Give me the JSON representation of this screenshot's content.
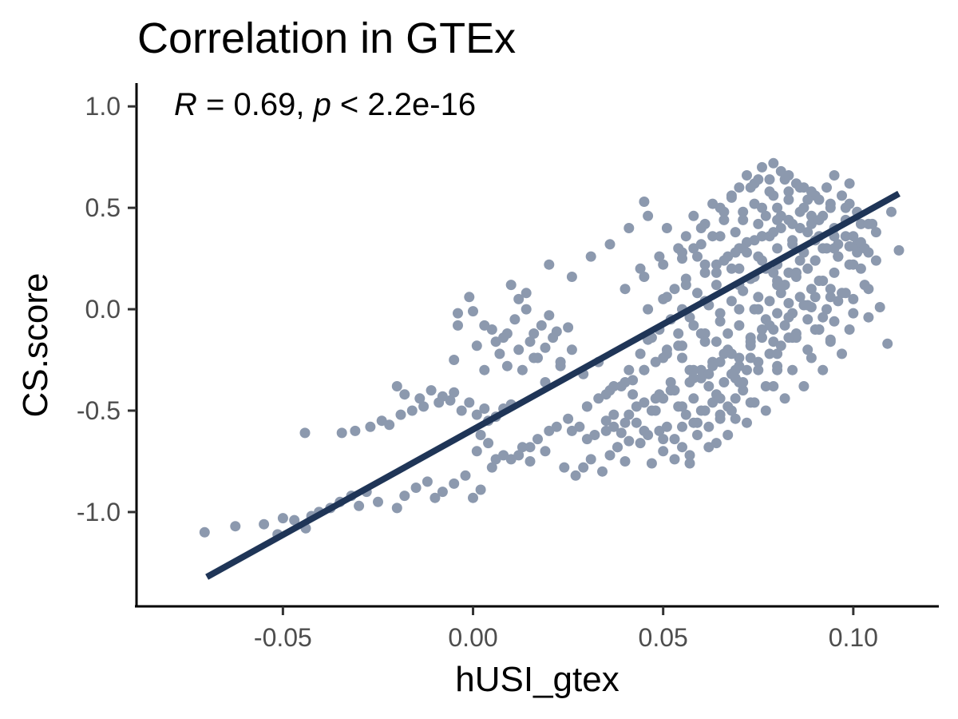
{
  "chart_data": {
    "type": "scatter",
    "title": "Correlation in GTEx",
    "xlabel": "hUSI_gtex",
    "ylabel": "CS.score",
    "xlim": [
      -0.0885,
      0.1225
    ],
    "ylim": [
      -1.465,
      1.115
    ],
    "x_ticks": [
      -0.05,
      0.0,
      0.05,
      0.1
    ],
    "x_tick_labels": [
      "-0.05",
      "0.00",
      "0.05",
      "0.10"
    ],
    "y_ticks": [
      -1.0,
      -0.5,
      0.0,
      0.5,
      1.0
    ],
    "y_tick_labels": [
      "-1.0",
      "-0.5",
      "0.0",
      "0.5",
      "1.0"
    ],
    "grid": false,
    "annotation": {
      "r_symbol": "R",
      "r_text": " = 0.69, ",
      "p_symbol": "p",
      "p_text": " < 2.2e-16"
    },
    "point_color": "#8c99ae",
    "line_color": "#1f3557",
    "regression_line": {
      "x_start": -0.07,
      "y_start": -1.32,
      "x_end": 0.112,
      "y_end": 0.57
    },
    "points": {
      "x": [
        -0.0706,
        -0.0625,
        -0.055,
        -0.0514,
        -0.0425,
        -0.044,
        -0.0405,
        -0.047,
        -0.05,
        -0.0375,
        -0.035,
        -0.03,
        -0.032,
        -0.028,
        -0.025,
        -0.02,
        -0.018,
        -0.015,
        -0.012,
        -0.01,
        -0.008,
        -0.005,
        -0.002,
        0.0,
        0.002,
        -0.0442,
        -0.0345,
        -0.031,
        -0.027,
        -0.024,
        -0.022,
        -0.019,
        -0.016,
        -0.013,
        -0.009,
        -0.006,
        -0.003,
        0.001,
        0.004,
        0.006,
        0.008,
        0.01,
        -0.02,
        -0.018,
        -0.014,
        -0.011,
        -0.008,
        -0.005,
        -0.001,
        0.003,
        -0.005,
        -0.004,
        0.0,
        0.001,
        0.005,
        0.008,
        0.011,
        0.014,
        0.016,
        0.018,
        0.02,
        0.022,
        0.003,
        0.007,
        0.009,
        0.012,
        0.015,
        0.017,
        0.019,
        0.021,
        0.023,
        0.025,
        0.012,
        0.014,
        0.01,
        0.006,
        0.002,
        0.001,
        0.004,
        0.008,
        0.013,
        0.015,
        0.019,
        0.024,
        0.027,
        0.029,
        0.031,
        0.034,
        0.036,
        0.038,
        0.04,
        0.026,
        0.028,
        0.03,
        0.032,
        0.035,
        0.037,
        0.039,
        0.041,
        0.043,
        0.03,
        0.033,
        0.036,
        0.039,
        0.042,
        0.045,
        0.048,
        0.05,
        0.052,
        0.054,
        0.056,
        0.058,
        0.044,
        0.046,
        0.049,
        0.051,
        0.053,
        0.055,
        0.057,
        0.059,
        0.047,
        0.05,
        0.053,
        0.041,
        0.038,
        0.042,
        0.045,
        0.048,
        0.051,
        0.054,
        0.057,
        0.06,
        0.062,
        0.064,
        0.066,
        0.068,
        0.07,
        0.055,
        0.058,
        0.061,
        0.063,
        0.065,
        0.067,
        0.069,
        0.071,
        0.073,
        0.059,
        0.062,
        0.065,
        0.068,
        0.046,
        0.049,
        0.052,
        0.055,
        0.058,
        0.061,
        0.064,
        0.067,
        0.07,
        0.073,
        0.076,
        0.079,
        0.06,
        0.063,
        0.066,
        0.069,
        0.072,
        0.075,
        0.078,
        0.081,
        0.084,
        0.057,
        0.062,
        0.071,
        0.08,
        0.05,
        0.053,
        0.056,
        0.059,
        0.062,
        0.065,
        0.068,
        0.071,
        0.074,
        0.077,
        0.08,
        0.083,
        0.086,
        0.089,
        0.092,
        0.067,
        0.07,
        0.073,
        0.076,
        0.079,
        0.082,
        0.085,
        0.088,
        0.091,
        0.094,
        0.055,
        0.058,
        0.061,
        0.064,
        0.067,
        0.07,
        0.073,
        0.076,
        0.079,
        0.082,
        0.085,
        0.088,
        0.091,
        0.094,
        0.097,
        0.1,
        0.103,
        0.075,
        0.078,
        0.081,
        0.084,
        0.087,
        0.09,
        0.093,
        0.096,
        0.06,
        0.063,
        0.066,
        0.069,
        0.072,
        0.075,
        0.078,
        0.081,
        0.084,
        0.087,
        0.09,
        0.093,
        0.096,
        0.099,
        0.102,
        0.07,
        0.074,
        0.077,
        0.08,
        0.083,
        0.086,
        0.089,
        0.092,
        0.095,
        0.098,
        0.065,
        0.068,
        0.071,
        0.074,
        0.077,
        0.08,
        0.083,
        0.086,
        0.089,
        0.092,
        0.095,
        0.098,
        0.101,
        0.104,
        0.08,
        0.084,
        0.088,
        0.092,
        0.096,
        0.1,
        0.079,
        0.083,
        0.087,
        0.091,
        0.095,
        0.07,
        0.074,
        0.078,
        0.082,
        0.086,
        0.09,
        0.094,
        0.098,
        0.102,
        0.106,
        0.072,
        0.076,
        0.081,
        0.085,
        0.089,
        0.093,
        0.097,
        0.101,
        0.075,
        0.079,
        0.083,
        0.087,
        0.091,
        0.095,
        0.099,
        0.035,
        0.04,
        0.045,
        0.05,
        0.055,
        0.06,
        0.065,
        0.07,
        0.075,
        0.08,
        0.085,
        0.09,
        0.095,
        0.1,
        0.037,
        0.043,
        0.048,
        0.053,
        0.058,
        0.063,
        0.068,
        0.073,
        0.078,
        0.083,
        0.088,
        0.062,
        0.067,
        0.072,
        0.077,
        0.082,
        0.087,
        0.092,
        0.097,
        0.057,
        0.064,
        0.069,
        0.074,
        0.079,
        0.084,
        0.089,
        0.094,
        0.099,
        0.104,
        0.058,
        0.063,
        0.068,
        0.073,
        0.078,
        0.083,
        0.088,
        0.04,
        0.045,
        0.05,
        0.055,
        0.06,
        0.065,
        0.07,
        0.075,
        0.08,
        0.085,
        0.09,
        0.095,
        0.044,
        0.049,
        0.054,
        0.059,
        0.064,
        0.069,
        0.074,
        0.079,
        0.084,
        0.089,
        0.094,
        0.099,
        0.104,
        0.02,
        0.026,
        0.031,
        0.036,
        0.041,
        0.046,
        0.051,
        0.056,
        0.061,
        0.066,
        0.071,
        0.076,
        0.081,
        0.086,
        0.091,
        0.096,
        0.101,
        0.106,
        0.046,
        0.051,
        0.056,
        0.061,
        0.066,
        0.071,
        0.076,
        0.005,
        0.01,
        0.015,
        0.02,
        0.025,
        0.03,
        0.035,
        0.04,
        0.045,
        0.05,
        0.055,
        0.06,
        0.065,
        0.07,
        0.075,
        0.08,
        0.085,
        0.09,
        0.095,
        0.1,
        0.105,
        0.11,
        0.012,
        0.017,
        0.022,
        0.112,
        0.109,
        0.107,
        0.104,
        0.103,
        0.102,
        0.099,
        0.098,
        0.096,
        0.094,
        0.091,
        0.088,
        0.083,
        0.08,
        0.077,
        0.073,
        0.069,
        0.065,
        0.061,
        0.058,
        0.055,
        0.052,
        0.049,
        0.047,
        0.045,
        -0.004,
        -0.001,
        0.003,
        0.006,
        0.009,
        0.013,
        0.016,
        0.019,
        0.023,
        0.026,
        0.029,
        0.033,
        0.037,
        0.041,
        0.044,
        0.047,
        0.051,
        0.054,
        0.057,
        0.061,
        0.064,
        0.068,
        0.072,
        0.076,
        0.08
      ],
      "y": [
        -1.1,
        -1.07,
        -1.06,
        -1.11,
        -1.02,
        -1.08,
        -1.0,
        -1.04,
        -1.03,
        -0.98,
        -0.95,
        -0.97,
        -0.92,
        -0.9,
        -0.95,
        -0.98,
        -0.92,
        -0.88,
        -0.85,
        -0.93,
        -0.9,
        -0.86,
        -0.82,
        -0.93,
        -0.89,
        -0.61,
        -0.61,
        -0.6,
        -0.58,
        -0.55,
        -0.57,
        -0.52,
        -0.5,
        -0.48,
        -0.46,
        -0.45,
        -0.5,
        -0.52,
        -0.55,
        -0.53,
        -0.49,
        -0.47,
        -0.38,
        -0.42,
        -0.44,
        -0.4,
        -0.43,
        -0.41,
        -0.46,
        -0.49,
        -0.25,
        -0.08,
        -0.01,
        -0.18,
        -0.1,
        -0.14,
        -0.05,
        0.0,
        -0.12,
        -0.08,
        -0.03,
        -0.11,
        -0.3,
        -0.22,
        -0.28,
        -0.2,
        -0.16,
        -0.24,
        -0.19,
        -0.14,
        -0.26,
        -0.09,
        0.05,
        0.08,
        0.12,
        -0.74,
        -0.62,
        -0.7,
        -0.66,
        -0.72,
        -0.68,
        -0.75,
        -0.7,
        -0.78,
        -0.82,
        -0.78,
        -0.74,
        -0.8,
        -0.72,
        -0.68,
        -0.75,
        -0.6,
        -0.58,
        -0.64,
        -0.62,
        -0.55,
        -0.58,
        -0.61,
        -0.52,
        -0.56,
        -0.48,
        -0.44,
        -0.4,
        -0.38,
        -0.42,
        -0.46,
        -0.5,
        -0.44,
        -0.4,
        -0.48,
        -0.52,
        -0.56,
        -0.66,
        -0.62,
        -0.6,
        -0.58,
        -0.64,
        -0.68,
        -0.72,
        -0.62,
        -0.76,
        -0.7,
        -0.74,
        -0.65,
        -0.68,
        -0.35,
        -0.3,
        -0.26,
        -0.22,
        -0.18,
        -0.3,
        -0.34,
        -0.38,
        -0.42,
        -0.36,
        -0.32,
        -0.28,
        -0.48,
        -0.44,
        -0.5,
        -0.46,
        -0.52,
        -0.48,
        -0.44,
        -0.4,
        -0.46,
        -0.56,
        -0.58,
        -0.54,
        -0.5,
        -0.15,
        -0.1,
        -0.05,
        0.0,
        -0.08,
        -0.12,
        -0.16,
        -0.2,
        -0.24,
        -0.18,
        -0.14,
        -0.1,
        -0.3,
        -0.26,
        -0.22,
        -0.34,
        -0.3,
        -0.26,
        -0.22,
        -0.18,
        -0.14,
        -0.36,
        -0.32,
        -0.36,
        -0.3,
        0.05,
        0.1,
        0.15,
        0.08,
        0.02,
        -0.02,
        0.04,
        0.09,
        0.0,
        -0.05,
        -0.02,
        0.03,
        0.06,
        0.01,
        -0.04,
        -0.12,
        -0.08,
        -0.14,
        -0.1,
        -0.16,
        -0.08,
        -0.12,
        -0.05,
        -0.1,
        -0.15,
        0.25,
        0.3,
        0.22,
        0.18,
        0.26,
        0.2,
        0.15,
        0.24,
        0.18,
        0.12,
        0.16,
        0.2,
        0.14,
        0.1,
        0.08,
        0.05,
        0.12,
        0.0,
        0.04,
        0.08,
        -0.02,
        0.02,
        0.06,
        0.0,
        0.04,
        0.4,
        0.36,
        0.44,
        0.38,
        0.33,
        0.42,
        0.36,
        0.4,
        0.32,
        0.28,
        0.34,
        0.3,
        0.26,
        0.22,
        0.2,
        0.12,
        0.16,
        0.2,
        0.14,
        0.18,
        0.24,
        0.1,
        0.14,
        0.18,
        0.08,
        0.5,
        0.55,
        0.48,
        0.52,
        0.46,
        0.5,
        0.44,
        0.48,
        0.42,
        0.46,
        0.4,
        0.36,
        0.32,
        0.28,
        0.3,
        0.34,
        0.38,
        0.3,
        0.26,
        0.22,
        0.56,
        0.54,
        0.5,
        0.44,
        0.36,
        0.6,
        0.62,
        0.58,
        0.64,
        0.6,
        0.56,
        0.52,
        0.5,
        0.42,
        0.38,
        0.66,
        0.7,
        0.68,
        0.62,
        0.58,
        0.6,
        0.56,
        0.48,
        0.64,
        0.72,
        0.66,
        0.6,
        0.54,
        0.66,
        0.62,
        -0.6,
        -0.56,
        -0.6,
        -0.64,
        -0.58,
        -0.5,
        -0.44,
        -0.36,
        -0.3,
        -0.22,
        -0.14,
        -0.1,
        -0.06,
        -0.02,
        -0.52,
        -0.48,
        -0.44,
        -0.4,
        -0.34,
        -0.28,
        -0.22,
        -0.16,
        -0.08,
        -0.04,
        0.02,
        -0.68,
        -0.62,
        -0.56,
        -0.5,
        -0.44,
        -0.38,
        -0.3,
        -0.22,
        -0.76,
        -0.66,
        -0.54,
        -0.46,
        -0.38,
        -0.3,
        -0.24,
        -0.16,
        -0.1,
        -0.04,
        0.46,
        0.52,
        0.56,
        0.6,
        0.64,
        0.58,
        0.54,
        0.1,
        0.16,
        0.22,
        0.28,
        0.32,
        0.36,
        0.3,
        0.26,
        0.22,
        0.18,
        0.24,
        0.3,
        0.2,
        0.26,
        0.3,
        0.26,
        0.22,
        0.28,
        0.34,
        0.38,
        0.42,
        0.46,
        0.5,
        0.52,
        0.42,
        0.22,
        0.16,
        0.26,
        0.32,
        0.4,
        0.46,
        0.4,
        0.36,
        0.42,
        0.48,
        0.44,
        0.5,
        0.46,
        0.4,
        0.36,
        0.32,
        0.28,
        0.24,
        0.0,
        0.06,
        0.12,
        0.18,
        0.24,
        0.3,
        0.36,
        -0.78,
        -0.74,
        -0.68,
        -0.6,
        -0.54,
        -0.48,
        -0.42,
        -0.36,
        -0.3,
        -0.24,
        -0.18,
        -0.12,
        -0.06,
        0.0,
        0.06,
        0.12,
        0.18,
        0.24,
        0.3,
        0.36,
        0.42,
        0.48,
        -0.72,
        -0.64,
        -0.58,
        0.29,
        -0.17,
        0.01,
        0.1,
        0.3,
        0.33,
        0.31,
        0.44,
        0.26,
        0.06,
        -0.1,
        -0.2,
        -0.14,
        -0.28,
        -0.38,
        -0.24,
        -0.3,
        -0.26,
        -0.16,
        -0.3,
        -0.24,
        -0.36,
        -0.42,
        -0.5,
        0.53,
        -0.02,
        0.06,
        -0.08,
        -0.16,
        -0.12,
        -0.3,
        -0.24,
        -0.36,
        -0.28,
        -0.2,
        -0.32,
        -0.26,
        -0.38,
        -0.3,
        -0.22,
        -0.14,
        -0.2,
        -0.12,
        -0.04,
        0.04,
        0.12,
        0.2,
        0.28,
        0.36,
        0.44
      ]
    }
  }
}
